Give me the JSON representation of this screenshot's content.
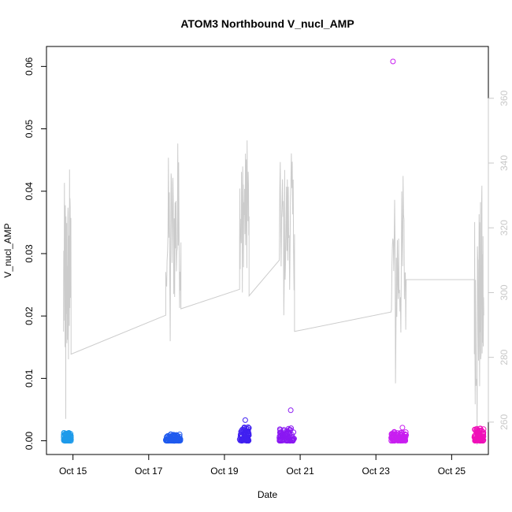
{
  "chart_data": {
    "type": "scatter",
    "title": "ATOM3 Northbound V_nucl_AMP",
    "xlabel": "Date",
    "ylabel": "V_nucl_AMP",
    "x_unit": "days (October)",
    "xlim": [
      14.3,
      25.97
    ],
    "ylim": [
      -0.0022,
      0.0632
    ],
    "y2lim": [
      250.0,
      376.0
    ],
    "x_ticks": [
      {
        "value": 15,
        "label": "Oct 15"
      },
      {
        "value": 17,
        "label": "Oct 17"
      },
      {
        "value": 19,
        "label": "Oct 19"
      },
      {
        "value": 21,
        "label": "Oct 21"
      },
      {
        "value": 23,
        "label": "Oct 23"
      },
      {
        "value": 25,
        "label": "Oct 25"
      }
    ],
    "y_ticks": [
      0.0,
      0.01,
      0.02,
      0.03,
      0.04,
      0.05,
      0.06
    ],
    "y_tick_labels": [
      "0.00",
      "0.01",
      "0.02",
      "0.03",
      "0.04",
      "0.05",
      "0.06"
    ],
    "y2_ticks": [
      260,
      280,
      300,
      320,
      340,
      360
    ],
    "y2_tick_labels": [
      "260",
      "280",
      "300",
      "320",
      "340",
      "360"
    ],
    "grid": false,
    "legend": "none",
    "line_color": "#cccccc",
    "scatter_series": [
      {
        "color": "#1e9bea",
        "x_start": 14.75,
        "x_end": 14.95,
        "max": 0.0013,
        "outliers": []
      },
      {
        "color": "#1f5aee",
        "x_start": 17.45,
        "x_end": 17.85,
        "max": 0.0011,
        "outliers": []
      },
      {
        "color": "#4020f0",
        "x_start": 19.4,
        "x_end": 19.65,
        "max": 0.0022,
        "outliers": [
          {
            "x": 19.55,
            "y": 0.0033
          }
        ]
      },
      {
        "color": "#8a18f2",
        "x_start": 20.45,
        "x_end": 20.85,
        "max": 0.0022,
        "outliers": [
          {
            "x": 20.75,
            "y": 0.0049
          }
        ]
      },
      {
        "color": "#c81ef0",
        "x_start": 23.4,
        "x_end": 23.8,
        "max": 0.0015,
        "outliers": [
          {
            "x": 23.45,
            "y": 0.0608
          },
          {
            "x": 23.7,
            "y": 0.0021
          }
        ]
      },
      {
        "color": "#f010b8",
        "x_start": 25.6,
        "x_end": 25.85,
        "max": 0.0021,
        "outliers": []
      }
    ],
    "line_series": [
      {
        "x_start": 14.75,
        "x_end": 14.95,
        "min": 261,
        "max": 338
      },
      {
        "x_start": 17.45,
        "x_end": 17.85,
        "min": 285,
        "max": 346
      },
      {
        "x_start": 19.4,
        "x_end": 19.65,
        "min": 300,
        "max": 347
      },
      {
        "x_start": 20.45,
        "x_end": 20.85,
        "min": 293,
        "max": 343
      },
      {
        "x_start": 23.4,
        "x_end": 23.8,
        "min": 272,
        "max": 336
      },
      {
        "x_start": 25.6,
        "x_end": 25.85,
        "min": 253,
        "max": 333
      }
    ],
    "line_connections": [
      {
        "x1": 14.95,
        "y1": 281,
        "x2": 17.45,
        "y2": 293
      },
      {
        "x1": 17.85,
        "y1": 295,
        "x2": 19.4,
        "y2": 301
      },
      {
        "x1": 19.65,
        "y1": 299,
        "x2": 20.45,
        "y2": 310
      },
      {
        "x1": 20.85,
        "y1": 288,
        "x2": 23.4,
        "y2": 294
      },
      {
        "x1": 23.8,
        "y1": 304,
        "x2": 25.6,
        "y2": 304
      }
    ]
  }
}
